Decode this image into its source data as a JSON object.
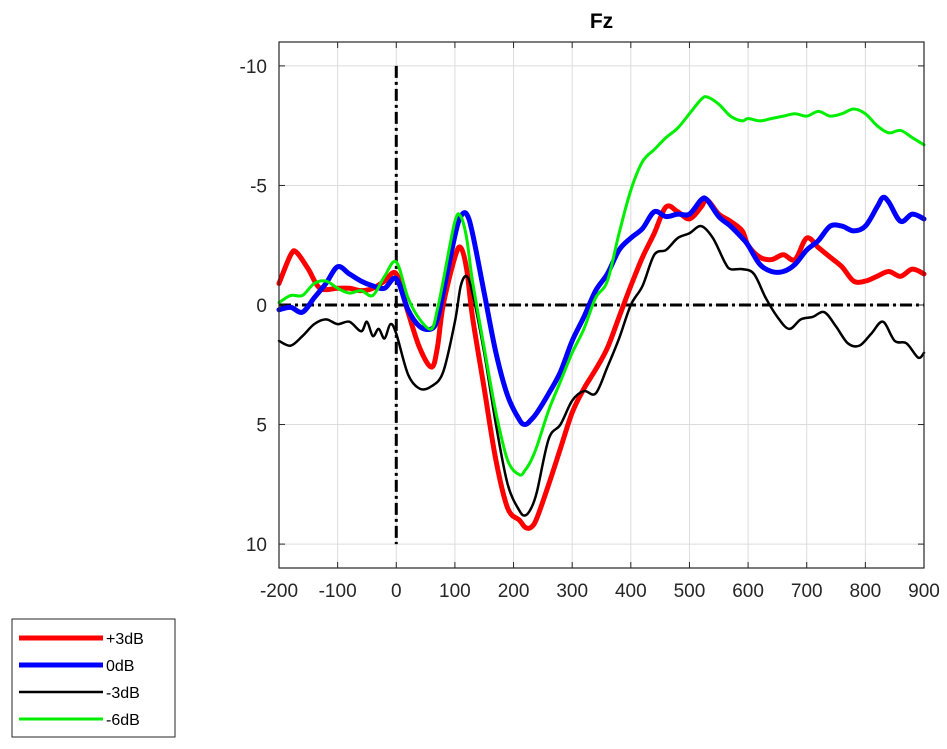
{
  "chart_data": {
    "type": "line",
    "title": "Fz",
    "xlabel": "",
    "ylabel": "",
    "xlim": [
      -200,
      900
    ],
    "ylim": [
      -11,
      11
    ],
    "y_reversed": true,
    "grid": true,
    "x_ticks": [
      -200,
      -100,
      0,
      100,
      200,
      300,
      400,
      500,
      600,
      700,
      800,
      900
    ],
    "y_ticks": [
      -10,
      -5,
      0,
      5,
      10
    ],
    "reference_lines": [
      {
        "orientation": "horizontal",
        "value": 0,
        "style": "dash-dot",
        "color": "#000000"
      },
      {
        "orientation": "vertical",
        "value": 0,
        "style": "dash-dot",
        "color": "#000000",
        "range": [
          -10,
          10
        ]
      }
    ],
    "legend_position": "below-left",
    "series": [
      {
        "name": "+3dB",
        "color": "#ff0000",
        "width": 5,
        "x": [
          -200,
          -180,
          -170,
          -150,
          -130,
          -100,
          -80,
          -60,
          -40,
          -20,
          0,
          20,
          40,
          60,
          70,
          80,
          100,
          110,
          120,
          130,
          150,
          170,
          190,
          210,
          220,
          230,
          240,
          260,
          280,
          300,
          320,
          340,
          360,
          380,
          400,
          420,
          440,
          460,
          480,
          500,
          520,
          530,
          550,
          570,
          590,
          600,
          620,
          640,
          660,
          680,
          700,
          720,
          740,
          760,
          780,
          800,
          820,
          840,
          860,
          880,
          900
        ],
        "y": [
          -0.9,
          -2.1,
          -2.2,
          -1.5,
          -0.7,
          -0.7,
          -0.7,
          -0.6,
          -0.7,
          -1.0,
          -1.3,
          0.3,
          1.8,
          2.6,
          1.8,
          0.0,
          -2.0,
          -2.4,
          -1.5,
          0.5,
          3.5,
          6.5,
          8.5,
          9.0,
          9.3,
          9.3,
          8.9,
          7.5,
          6.0,
          4.5,
          3.5,
          2.7,
          1.8,
          0.5,
          -0.8,
          -2.0,
          -3.0,
          -4.1,
          -3.9,
          -3.6,
          -4.1,
          -4.4,
          -3.8,
          -3.5,
          -3.1,
          -2.5,
          -2.0,
          -1.9,
          -2.1,
          -1.9,
          -2.8,
          -2.4,
          -2.0,
          -1.6,
          -1.0,
          -1.0,
          -1.2,
          -1.4,
          -1.2,
          -1.5,
          -1.3
        ]
      },
      {
        "name": "0dB",
        "color": "#0000ff",
        "width": 5,
        "x": [
          -200,
          -180,
          -160,
          -140,
          -120,
          -100,
          -80,
          -60,
          -40,
          -20,
          0,
          20,
          40,
          60,
          70,
          80,
          100,
          110,
          120,
          130,
          150,
          170,
          190,
          210,
          220,
          230,
          240,
          260,
          280,
          300,
          320,
          340,
          360,
          380,
          400,
          420,
          440,
          460,
          480,
          500,
          520,
          530,
          550,
          570,
          590,
          600,
          620,
          640,
          660,
          680,
          700,
          720,
          740,
          760,
          780,
          800,
          820,
          830,
          840,
          860,
          880,
          900
        ],
        "y": [
          0.2,
          0.1,
          0.3,
          -0.3,
          -0.9,
          -1.6,
          -1.3,
          -1.0,
          -0.8,
          -0.7,
          -1.1,
          0.2,
          0.9,
          1.0,
          0.6,
          -0.5,
          -2.9,
          -3.7,
          -3.8,
          -3.0,
          -0.5,
          2.0,
          3.8,
          4.8,
          5.0,
          4.8,
          4.5,
          3.7,
          2.8,
          1.5,
          0.5,
          -0.6,
          -1.3,
          -2.3,
          -2.8,
          -3.2,
          -3.9,
          -3.7,
          -3.8,
          -3.8,
          -4.4,
          -4.4,
          -3.7,
          -3.3,
          -2.8,
          -2.5,
          -1.7,
          -1.4,
          -1.4,
          -1.7,
          -2.3,
          -2.7,
          -3.3,
          -3.3,
          -3.1,
          -3.3,
          -4.1,
          -4.5,
          -4.3,
          -3.5,
          -3.8,
          -3.6
        ]
      },
      {
        "name": "-3dB",
        "color": "#000000",
        "width": 2.5,
        "x": [
          -200,
          -180,
          -160,
          -140,
          -120,
          -100,
          -80,
          -60,
          -50,
          -40,
          -30,
          -20,
          -10,
          0,
          20,
          40,
          60,
          80,
          100,
          110,
          120,
          130,
          150,
          170,
          190,
          210,
          220,
          230,
          240,
          260,
          280,
          300,
          320,
          340,
          360,
          380,
          400,
          420,
          440,
          460,
          480,
          500,
          520,
          540,
          560,
          570,
          590,
          610,
          630,
          650,
          670,
          690,
          710,
          730,
          750,
          770,
          790,
          810,
          830,
          850,
          870,
          890,
          900
        ],
        "y": [
          1.5,
          1.7,
          1.3,
          0.8,
          0.6,
          0.8,
          0.7,
          1.1,
          0.7,
          1.3,
          1.0,
          1.4,
          0.8,
          1.2,
          2.9,
          3.5,
          3.4,
          2.8,
          0.7,
          -0.8,
          -1.2,
          -0.5,
          2.0,
          5.0,
          7.5,
          8.6,
          8.8,
          8.5,
          7.8,
          5.6,
          5.0,
          4.0,
          3.6,
          3.7,
          2.6,
          1.4,
          0.0,
          -0.8,
          -2.1,
          -2.3,
          -2.8,
          -3.0,
          -3.3,
          -2.8,
          -1.8,
          -1.5,
          -1.5,
          -1.3,
          -0.3,
          0.5,
          1.0,
          0.6,
          0.5,
          0.3,
          0.9,
          1.6,
          1.7,
          1.2,
          0.7,
          1.5,
          1.6,
          2.2,
          2.0
        ]
      },
      {
        "name": "-6dB",
        "color": "#00ee00",
        "width": 3,
        "x": [
          -200,
          -180,
          -160,
          -140,
          -120,
          -100,
          -80,
          -60,
          -40,
          -20,
          0,
          20,
          40,
          60,
          70,
          80,
          100,
          110,
          120,
          130,
          150,
          170,
          190,
          210,
          220,
          230,
          240,
          260,
          280,
          300,
          320,
          340,
          360,
          380,
          400,
          420,
          440,
          460,
          480,
          500,
          520,
          530,
          550,
          570,
          590,
          600,
          620,
          640,
          660,
          680,
          700,
          720,
          740,
          760,
          780,
          800,
          820,
          840,
          860,
          880,
          900
        ],
        "y": [
          -0.1,
          -0.4,
          -0.4,
          -0.9,
          -1.0,
          -0.7,
          -0.5,
          -0.6,
          -0.4,
          -1.2,
          -1.8,
          -0.3,
          0.6,
          1.0,
          0.2,
          -1.0,
          -3.5,
          -3.7,
          -2.8,
          -1.0,
          1.8,
          4.5,
          6.5,
          7.1,
          6.9,
          6.5,
          5.9,
          4.4,
          3.2,
          2.0,
          1.0,
          -0.3,
          -1.0,
          -3.0,
          -4.8,
          -6.0,
          -6.5,
          -7.0,
          -7.4,
          -8.0,
          -8.6,
          -8.7,
          -8.4,
          -7.9,
          -7.7,
          -7.8,
          -7.7,
          -7.8,
          -7.9,
          -8.0,
          -7.9,
          -8.1,
          -7.9,
          -8.0,
          -8.2,
          -8.0,
          -7.5,
          -7.2,
          -7.3,
          -7.0,
          -6.7
        ]
      }
    ]
  }
}
